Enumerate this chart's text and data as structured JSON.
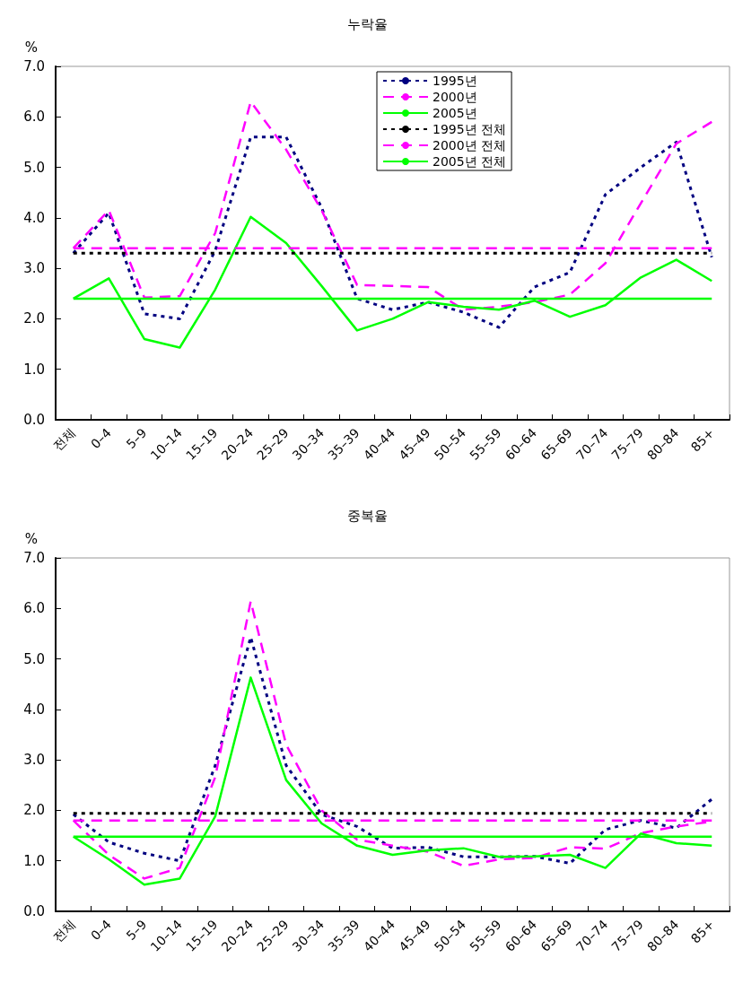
{
  "chart_data": [
    {
      "type": "line",
      "title": "누락율",
      "ylabel": "%",
      "categories": [
        "전체",
        "0–4",
        "5–9",
        "10–14",
        "15–19",
        "20–24",
        "25–29",
        "30–34",
        "35–39",
        "40–44",
        "45–49",
        "50–54",
        "55–59",
        "60–64",
        "65–69",
        "70–74",
        "75–79",
        "80–84",
        "85+"
      ],
      "ylim": [
        0,
        7
      ],
      "yticks": [
        {
          "value": 0,
          "label": "0.0"
        },
        {
          "value": 1,
          "label": "1.0"
        },
        {
          "value": 2,
          "label": "2.0"
        },
        {
          "value": 3,
          "label": "3.0"
        },
        {
          "value": 4,
          "label": "4.0"
        },
        {
          "value": 5,
          "label": "5.0"
        },
        {
          "value": 6,
          "label": "6.0"
        },
        {
          "value": 7,
          "label": "7.0"
        }
      ],
      "grid": false,
      "legend": "top",
      "marker": "none",
      "series": [
        {
          "name": "1995년",
          "color": "#000080",
          "line_style": "dotted",
          "values": [
            3.3,
            4.1,
            2.1,
            2.0,
            3.35,
            5.6,
            5.6,
            4.2,
            2.4,
            2.18,
            2.33,
            2.13,
            1.83,
            2.63,
            2.92,
            4.46,
            5.0,
            5.5,
            3.22
          ]
        },
        {
          "name": "2000년",
          "color": "#ff00ff",
          "line_style": "dashed",
          "values": [
            3.4,
            4.15,
            2.42,
            2.45,
            3.7,
            6.3,
            5.35,
            4.15,
            2.67,
            2.65,
            2.63,
            2.18,
            2.24,
            2.33,
            2.48,
            3.1,
            4.29,
            5.47,
            5.9
          ]
        },
        {
          "name": "2005년",
          "color": "#00ff00",
          "line_style": "solid",
          "values": [
            2.4,
            2.8,
            1.6,
            1.43,
            2.58,
            4.02,
            3.5,
            2.65,
            1.77,
            2.0,
            2.33,
            2.24,
            2.18,
            2.36,
            2.04,
            2.27,
            2.82,
            3.17,
            2.75
          ]
        },
        {
          "name": "1995년 전체",
          "color": "#000000",
          "line_style": "dotted",
          "values": [
            3.3,
            3.3,
            3.3,
            3.3,
            3.3,
            3.3,
            3.3,
            3.3,
            3.3,
            3.3,
            3.3,
            3.3,
            3.3,
            3.3,
            3.3,
            3.3,
            3.3,
            3.3,
            3.3
          ]
        },
        {
          "name": "2000년 전체",
          "color": "#ff00ff",
          "line_style": "dashed",
          "values": [
            3.4,
            3.4,
            3.4,
            3.4,
            3.4,
            3.4,
            3.4,
            3.4,
            3.4,
            3.4,
            3.4,
            3.4,
            3.4,
            3.4,
            3.4,
            3.4,
            3.4,
            3.4,
            3.4
          ]
        },
        {
          "name": "2005년 전체",
          "color": "#00ff00",
          "line_style": "solid",
          "values": [
            2.4,
            2.4,
            2.4,
            2.4,
            2.4,
            2.4,
            2.4,
            2.4,
            2.4,
            2.4,
            2.4,
            2.4,
            2.4,
            2.4,
            2.4,
            2.4,
            2.4,
            2.4,
            2.4
          ]
        }
      ]
    },
    {
      "type": "line",
      "title": "중복율",
      "ylabel": "%",
      "categories": [
        "전체",
        "0–4",
        "5–9",
        "10–14",
        "15–19",
        "20–24",
        "25–29",
        "30–34",
        "35–39",
        "40–44",
        "45–49",
        "50–54",
        "55–59",
        "60–64",
        "65–69",
        "70–74",
        "75–79",
        "80–84",
        "85+"
      ],
      "ylim": [
        0,
        7
      ],
      "yticks": [
        {
          "value": 0,
          "label": "0.0"
        },
        {
          "value": 1,
          "label": "1.0"
        },
        {
          "value": 2,
          "label": "2.0"
        },
        {
          "value": 3,
          "label": "3.0"
        },
        {
          "value": 4,
          "label": "4.0"
        },
        {
          "value": 5,
          "label": "5.0"
        },
        {
          "value": 6,
          "label": "6.0"
        },
        {
          "value": 7,
          "label": "7.0"
        }
      ],
      "grid": false,
      "marker": "none",
      "series": [
        {
          "color": "#000080",
          "line_style": "dotted",
          "values": [
            1.92,
            1.37,
            1.15,
            1.0,
            2.89,
            5.43,
            2.89,
            1.92,
            1.68,
            1.25,
            1.27,
            1.08,
            1.08,
            1.09,
            0.95,
            1.62,
            1.8,
            1.65,
            2.22
          ]
        },
        {
          "color": "#ff00ff",
          "line_style": "dashed",
          "values": [
            1.8,
            1.12,
            0.65,
            0.86,
            2.66,
            6.14,
            3.3,
            2.0,
            1.42,
            1.3,
            1.18,
            0.9,
            1.03,
            1.06,
            1.27,
            1.24,
            1.55,
            1.68,
            1.78
          ]
        },
        {
          "color": "#00ff00",
          "line_style": "solid",
          "values": [
            1.48,
            1.03,
            0.53,
            0.65,
            1.88,
            4.63,
            2.6,
            1.74,
            1.3,
            1.12,
            1.21,
            1.25,
            1.08,
            1.09,
            1.12,
            0.86,
            1.54,
            1.35,
            1.3
          ]
        },
        {
          "color": "#000000",
          "line_style": "dotted",
          "values": [
            1.94,
            1.94,
            1.94,
            1.94,
            1.94,
            1.94,
            1.94,
            1.94,
            1.94,
            1.94,
            1.94,
            1.94,
            1.94,
            1.94,
            1.94,
            1.94,
            1.94,
            1.94,
            1.94
          ]
        },
        {
          "color": "#ff00ff",
          "line_style": "dashed",
          "values": [
            1.8,
            1.8,
            1.8,
            1.8,
            1.8,
            1.8,
            1.8,
            1.8,
            1.8,
            1.8,
            1.8,
            1.8,
            1.8,
            1.8,
            1.8,
            1.8,
            1.8,
            1.8,
            1.8
          ]
        },
        {
          "color": "#00ff00",
          "line_style": "solid",
          "values": [
            1.48,
            1.48,
            1.48,
            1.48,
            1.48,
            1.48,
            1.48,
            1.48,
            1.48,
            1.48,
            1.48,
            1.48,
            1.48,
            1.48,
            1.48,
            1.48,
            1.48,
            1.48,
            1.48
          ]
        }
      ]
    }
  ]
}
